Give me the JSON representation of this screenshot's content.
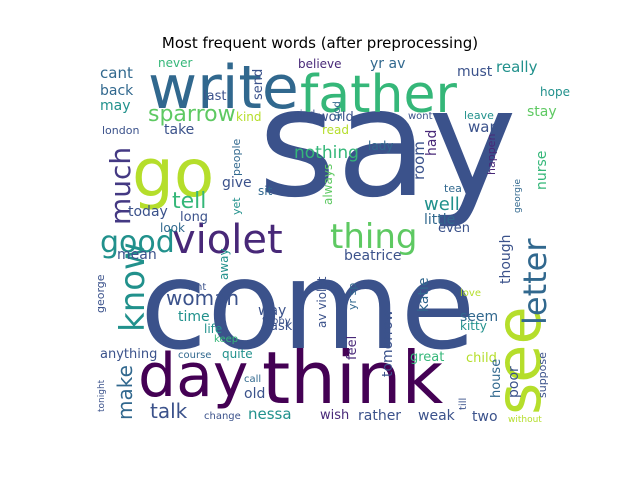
{
  "figure": {
    "title": "Most frequent words (after preprocessing)"
  },
  "palette": {
    "dark_purple": "#440154",
    "indigo": "#3b528b",
    "blue": "#31688e",
    "teal": "#21918c",
    "green": "#35b779",
    "light_green": "#5ec962",
    "lime": "#b5de2b"
  },
  "words": [
    {
      "text": "say",
      "color": "#3b528b"
    },
    {
      "text": "come",
      "color": "#3b528b"
    },
    {
      "text": "write",
      "color": "#31688e"
    },
    {
      "text": "father",
      "color": "#35b779"
    },
    {
      "text": "go",
      "color": "#b5de2b"
    },
    {
      "text": "think",
      "color": "#440154"
    },
    {
      "text": "day",
      "color": "#440154"
    },
    {
      "text": "see",
      "color": "#b5de2b"
    },
    {
      "text": "violet",
      "color": "#482878"
    },
    {
      "text": "thing",
      "color": "#5ec962"
    },
    {
      "text": "letter",
      "color": "#31688e"
    },
    {
      "text": "good",
      "color": "#21918c"
    },
    {
      "text": "know",
      "color": "#21918c"
    },
    {
      "text": "much",
      "color": "#443983"
    },
    {
      "text": "sparrow",
      "color": "#5ec962"
    },
    {
      "text": "woman",
      "color": "#3b528b"
    },
    {
      "text": "tell",
      "color": "#35b779"
    },
    {
      "text": "make",
      "color": "#31688e"
    },
    {
      "text": "talk",
      "color": "#3b528b"
    },
    {
      "text": "well",
      "color": "#21918c"
    },
    {
      "text": "little",
      "color": "#31688e"
    },
    {
      "text": "nothing",
      "color": "#35b779"
    },
    {
      "text": "want",
      "color": "#3b528b"
    },
    {
      "text": "really",
      "color": "#21918c"
    },
    {
      "text": "must",
      "color": "#3b528b"
    },
    {
      "text": "room",
      "color": "#3b528b"
    },
    {
      "text": "cant",
      "color": "#31688e"
    },
    {
      "text": "back",
      "color": "#31688e"
    },
    {
      "text": "may",
      "color": "#21918c"
    },
    {
      "text": "yr av",
      "color": "#31688e"
    },
    {
      "text": "believe",
      "color": "#482878"
    },
    {
      "text": "never",
      "color": "#35b779"
    },
    {
      "text": "last",
      "color": "#3b528b"
    },
    {
      "text": "send",
      "color": "#3b528b"
    },
    {
      "text": "kind",
      "color": "#b5de2b"
    },
    {
      "text": "take",
      "color": "#3b528b"
    },
    {
      "text": "london",
      "color": "#3b528b"
    },
    {
      "text": "give",
      "color": "#3b528b"
    },
    {
      "text": "sit",
      "color": "#31688e"
    },
    {
      "text": "end",
      "color": "#3b528b"
    },
    {
      "text": "today",
      "color": "#3b528b"
    },
    {
      "text": "long",
      "color": "#3b528b"
    },
    {
      "text": "look",
      "color": "#31688e"
    },
    {
      "text": "mean",
      "color": "#3b528b"
    },
    {
      "text": "time",
      "color": "#21918c"
    },
    {
      "text": "life",
      "color": "#21918c"
    },
    {
      "text": "old",
      "color": "#3b528b"
    },
    {
      "text": "ask",
      "color": "#3b528b"
    },
    {
      "text": "way",
      "color": "#3b528b"
    },
    {
      "text": "seem",
      "color": "#31688e"
    },
    {
      "text": "kitty",
      "color": "#21918c"
    },
    {
      "text": "katie",
      "color": "#31688e"
    },
    {
      "text": "beatrice",
      "color": "#3b528b"
    },
    {
      "text": "tomorrow",
      "color": "#3b528b"
    },
    {
      "text": "feel",
      "color": "#482878"
    },
    {
      "text": "nessa",
      "color": "#21918c"
    },
    {
      "text": "wish",
      "color": "#482878"
    },
    {
      "text": "rather",
      "color": "#3b528b"
    },
    {
      "text": "weak",
      "color": "#3b528b"
    },
    {
      "text": "two",
      "color": "#3b528b"
    },
    {
      "text": "great",
      "color": "#35b779"
    },
    {
      "text": "child",
      "color": "#b5de2b"
    },
    {
      "text": "house",
      "color": "#31688e"
    },
    {
      "text": "poor",
      "color": "#3b528b"
    },
    {
      "text": "though",
      "color": "#3b528b"
    },
    {
      "text": "nurse",
      "color": "#35b779"
    },
    {
      "text": "hope",
      "color": "#21918c"
    },
    {
      "text": "stay",
      "color": "#5ec962"
    },
    {
      "text": "leave",
      "color": "#21918c"
    },
    {
      "text": "wont",
      "color": "#3b528b"
    },
    {
      "text": "world",
      "color": "#3b528b"
    },
    {
      "text": "read",
      "color": "#b5de2b"
    },
    {
      "text": "lady",
      "color": "#31688e"
    },
    {
      "text": "had",
      "color": "#482878"
    },
    {
      "text": "happen",
      "color": "#482878"
    },
    {
      "text": "tea",
      "color": "#31688e"
    },
    {
      "text": "even",
      "color": "#3b528b"
    },
    {
      "text": "georgie",
      "color": "#31688e"
    },
    {
      "text": "mind",
      "color": "#3b528b"
    },
    {
      "text": "god",
      "color": "#31688e"
    },
    {
      "text": "always",
      "color": "#5ec962"
    },
    {
      "text": "people",
      "color": "#31688e"
    },
    {
      "text": "yet",
      "color": "#21918c"
    },
    {
      "text": "away",
      "color": "#21918c"
    },
    {
      "text": "george",
      "color": "#3b528b"
    },
    {
      "text": "anything",
      "color": "#3b528b"
    },
    {
      "text": "tonight",
      "color": "#3b528b"
    },
    {
      "text": "isnt",
      "color": "#3b528b"
    },
    {
      "text": "keep",
      "color": "#35b779"
    },
    {
      "text": "course",
      "color": "#31688e"
    },
    {
      "text": "quite",
      "color": "#21918c"
    },
    {
      "text": "call",
      "color": "#31688e"
    },
    {
      "text": "change",
      "color": "#3b528b"
    },
    {
      "text": "thoby",
      "color": "#3b528b"
    },
    {
      "text": "av violet",
      "color": "#3b528b"
    },
    {
      "text": "yr sp",
      "color": "#31688e"
    },
    {
      "text": "love",
      "color": "#b5de2b"
    },
    {
      "text": "till",
      "color": "#3b528b"
    },
    {
      "text": "suppose",
      "color": "#3b528b"
    },
    {
      "text": "without",
      "color": "#b5de2b"
    }
  ]
}
